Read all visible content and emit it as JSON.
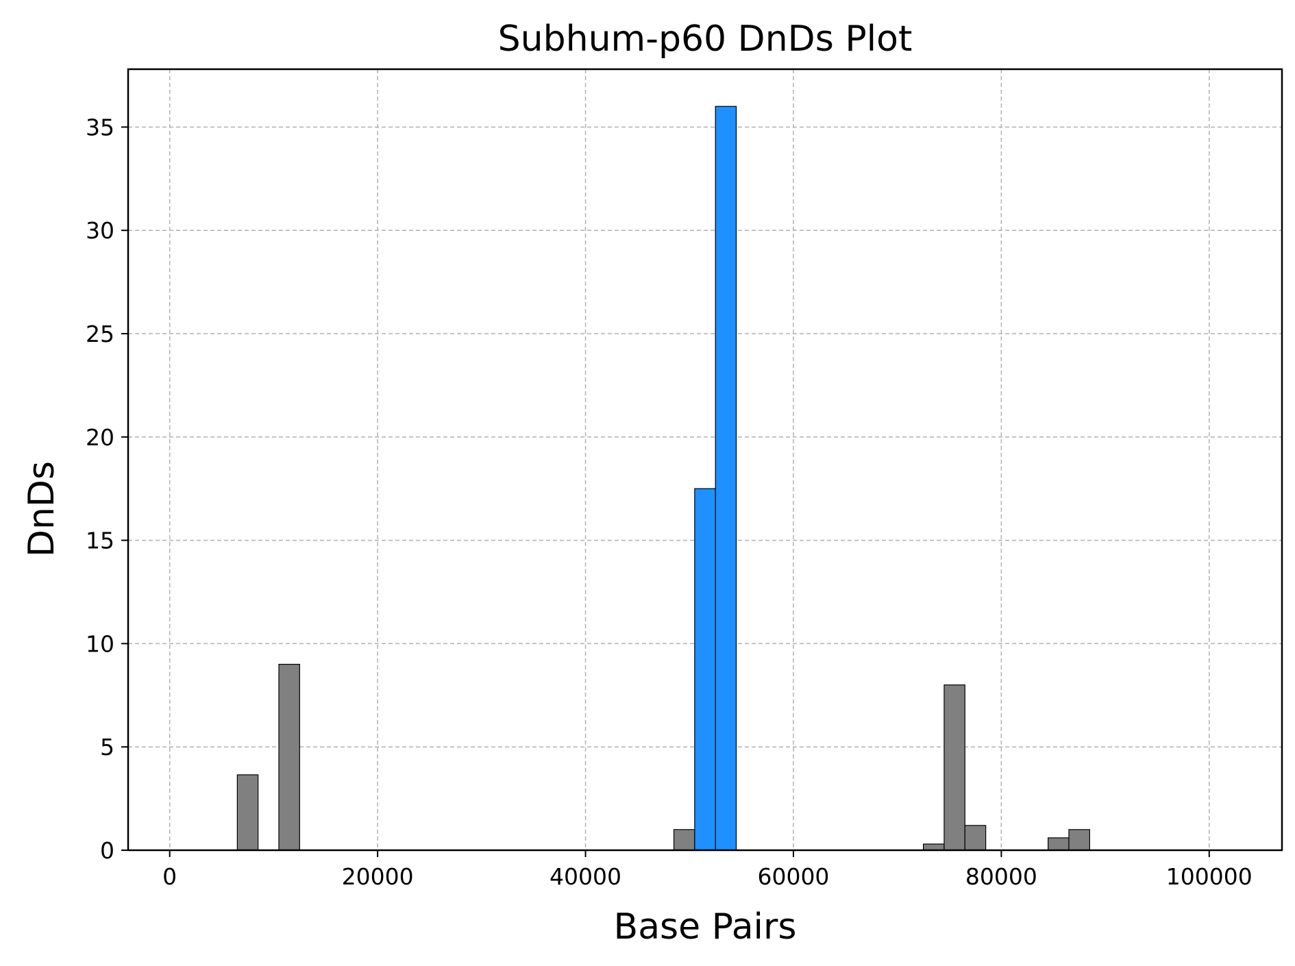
{
  "chart_data": {
    "type": "bar",
    "title": "Subhum-p60 DnDs Plot",
    "xlabel": "Base Pairs",
    "ylabel": "DnDs",
    "xlim": [
      -4000,
      107000
    ],
    "ylim": [
      0,
      37.8
    ],
    "xticks": [
      0,
      20000,
      40000,
      60000,
      80000,
      100000
    ],
    "yticks": [
      0,
      5,
      10,
      15,
      20,
      25,
      30,
      35
    ],
    "grid": true,
    "bar_width": 2000,
    "colors": {
      "default": "#808080",
      "highlight": "#1E90FF"
    },
    "bars": [
      {
        "x": 7500,
        "value": 3.65,
        "color": "#808080"
      },
      {
        "x": 11500,
        "value": 9.0,
        "color": "#808080"
      },
      {
        "x": 49500,
        "value": 1.0,
        "color": "#808080"
      },
      {
        "x": 51500,
        "value": 17.5,
        "color": "#1E90FF"
      },
      {
        "x": 53500,
        "value": 36.0,
        "color": "#1E90FF"
      },
      {
        "x": 73500,
        "value": 0.3,
        "color": "#808080"
      },
      {
        "x": 75500,
        "value": 8.0,
        "color": "#808080"
      },
      {
        "x": 77500,
        "value": 1.2,
        "color": "#808080"
      },
      {
        "x": 85500,
        "value": 0.6,
        "color": "#808080"
      },
      {
        "x": 87500,
        "value": 1.0,
        "color": "#808080"
      }
    ]
  }
}
